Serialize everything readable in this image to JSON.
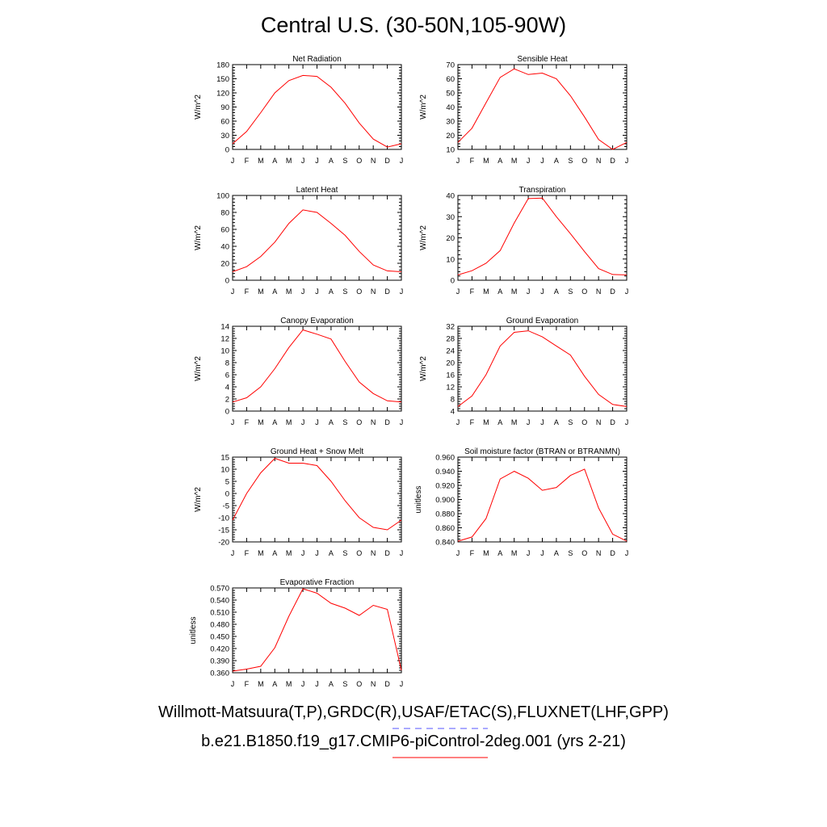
{
  "title": "Central U.S. (30-50N,105-90W)",
  "legend": {
    "obs_label": "Willmott-Matsuura(T,P),GRDC(R),USAF/ETAC(S),FLUXNET(LHF,GPP)",
    "obs_color": "#5555ff",
    "model_label": "b.e21.B1850.f19_g17.CMIP6-piControl-2deg.001 (yrs 2-21)",
    "model_color": "#ff0000"
  },
  "chart_data": [
    {
      "type": "line",
      "title": "Net Radiation",
      "ylabel": "W/m^2",
      "x": [
        "J",
        "F",
        "M",
        "A",
        "M",
        "J",
        "J",
        "A",
        "S",
        "O",
        "N",
        "D",
        "J"
      ],
      "ylim": [
        0,
        180
      ],
      "yticks": [
        0,
        30,
        60,
        90,
        120,
        150,
        180
      ],
      "ytick_labels": [
        "0",
        "30",
        "60",
        "90",
        "120",
        "150",
        "180"
      ],
      "series": [
        {
          "values": [
            12,
            38,
            78,
            120,
            146,
            157,
            155,
            132,
            98,
            56,
            22,
            5,
            12
          ],
          "color": "#ff0000"
        }
      ]
    },
    {
      "type": "line",
      "title": "Sensible Heat",
      "ylabel": "W/m^2",
      "x": [
        "J",
        "F",
        "M",
        "A",
        "M",
        "J",
        "J",
        "A",
        "S",
        "O",
        "N",
        "D",
        "J"
      ],
      "ylim": [
        10,
        70
      ],
      "yticks": [
        10,
        20,
        30,
        40,
        50,
        60,
        70
      ],
      "ytick_labels": [
        "10",
        "20",
        "30",
        "40",
        "50",
        "60",
        "70"
      ],
      "series": [
        {
          "values": [
            15,
            25,
            43,
            61,
            67,
            63,
            64,
            60,
            48,
            33,
            17,
            10,
            15
          ],
          "color": "#ff0000"
        }
      ]
    },
    {
      "type": "line",
      "title": "Latent Heat",
      "ylabel": "W/m^2",
      "x": [
        "J",
        "F",
        "M",
        "A",
        "M",
        "J",
        "J",
        "A",
        "S",
        "O",
        "N",
        "D",
        "J"
      ],
      "ylim": [
        0,
        100
      ],
      "yticks": [
        0,
        20,
        40,
        60,
        80,
        100
      ],
      "ytick_labels": [
        "0",
        "20",
        "40",
        "60",
        "80",
        "100"
      ],
      "series": [
        {
          "values": [
            10,
            16,
            28,
            45,
            67,
            83,
            80,
            67,
            53,
            34,
            18,
            11,
            10
          ],
          "color": "#ff0000"
        }
      ]
    },
    {
      "type": "line",
      "title": "Transpiration",
      "ylabel": "W/m^2",
      "x": [
        "J",
        "F",
        "M",
        "A",
        "M",
        "J",
        "J",
        "A",
        "S",
        "O",
        "N",
        "D",
        "J"
      ],
      "ylim": [
        0,
        40
      ],
      "yticks": [
        0,
        10,
        20,
        30,
        40
      ],
      "ytick_labels": [
        "0",
        "10",
        "20",
        "30",
        "40"
      ],
      "series": [
        {
          "values": [
            2.5,
            4.5,
            8,
            14,
            27,
            38.5,
            38.8,
            30,
            22,
            13.5,
            5.5,
            2.7,
            2.5
          ],
          "color": "#ff0000"
        }
      ]
    },
    {
      "type": "line",
      "title": "Canopy Evaporation",
      "ylabel": "W/m^2",
      "x": [
        "J",
        "F",
        "M",
        "A",
        "M",
        "J",
        "J",
        "A",
        "S",
        "O",
        "N",
        "D",
        "J"
      ],
      "ylim": [
        0,
        14
      ],
      "yticks": [
        0,
        2,
        4,
        6,
        8,
        10,
        12,
        14
      ],
      "ytick_labels": [
        "0",
        "2",
        "4",
        "6",
        "8",
        "10",
        "12",
        "14"
      ],
      "series": [
        {
          "values": [
            1.5,
            2.2,
            4,
            7,
            10.5,
            13.4,
            12.7,
            11.9,
            8.2,
            4.8,
            2.9,
            1.7,
            1.5
          ],
          "color": "#ff0000"
        }
      ]
    },
    {
      "type": "line",
      "title": "Ground Evaporation",
      "ylabel": "W/m^2",
      "x": [
        "J",
        "F",
        "M",
        "A",
        "M",
        "J",
        "J",
        "A",
        "S",
        "O",
        "N",
        "D",
        "J"
      ],
      "ylim": [
        4,
        32
      ],
      "yticks": [
        4,
        8,
        12,
        16,
        20,
        24,
        28,
        32
      ],
      "ytick_labels": [
        "4",
        "8",
        "12",
        "16",
        "20",
        "24",
        "28",
        "32"
      ],
      "series": [
        {
          "values": [
            5.5,
            9,
            16,
            25.5,
            30,
            30.5,
            28.5,
            25.5,
            22.5,
            15.5,
            9.5,
            6.2,
            5.5
          ],
          "color": "#ff0000"
        }
      ]
    },
    {
      "type": "line",
      "title": "Ground Heat + Snow Melt",
      "ylabel": "W/m^2",
      "x": [
        "J",
        "F",
        "M",
        "A",
        "M",
        "J",
        "J",
        "A",
        "S",
        "O",
        "N",
        "D",
        "J"
      ],
      "ylim": [
        -20,
        15
      ],
      "yticks": [
        -20,
        -15,
        -10,
        -5,
        0,
        5,
        10,
        15
      ],
      "ytick_labels": [
        "-20",
        "-15",
        "-10",
        "-5",
        "0",
        "5",
        "10",
        "15"
      ],
      "series": [
        {
          "values": [
            -11,
            0,
            8.5,
            14.5,
            12.5,
            12.5,
            11.5,
            5,
            -3,
            -10,
            -14,
            -15,
            -11
          ],
          "color": "#ff0000"
        }
      ]
    },
    {
      "type": "line",
      "title": "Soil moisture factor (BTRAN or BTRANMN)",
      "ylabel": "unitless",
      "x": [
        "J",
        "F",
        "M",
        "A",
        "M",
        "J",
        "J",
        "A",
        "S",
        "O",
        "N",
        "D",
        "J"
      ],
      "ylim": [
        0.84,
        0.96
      ],
      "yticks": [
        0.84,
        0.86,
        0.88,
        0.9,
        0.92,
        0.94,
        0.96
      ],
      "ytick_labels": [
        "0.840",
        "0.860",
        "0.880",
        "0.900",
        "0.920",
        "0.940",
        "0.960"
      ],
      "series": [
        {
          "values": [
            0.841,
            0.847,
            0.873,
            0.929,
            0.94,
            0.93,
            0.913,
            0.917,
            0.934,
            0.943,
            0.888,
            0.851,
            0.841
          ],
          "color": "#ff0000"
        }
      ]
    },
    {
      "type": "line",
      "title": "Evaporative Fraction",
      "ylabel": "unitless",
      "x": [
        "J",
        "F",
        "M",
        "A",
        "M",
        "J",
        "J",
        "A",
        "S",
        "O",
        "N",
        "D",
        "J"
      ],
      "ylim": [
        0.36,
        0.57
      ],
      "yticks": [
        0.36,
        0.39,
        0.42,
        0.45,
        0.48,
        0.51,
        0.54,
        0.57
      ],
      "ytick_labels": [
        "0.360",
        "0.390",
        "0.420",
        "0.450",
        "0.480",
        "0.510",
        "0.540",
        "0.570"
      ],
      "series": [
        {
          "values": [
            0.364,
            0.369,
            0.376,
            0.422,
            0.5,
            0.568,
            0.557,
            0.532,
            0.52,
            0.502,
            0.527,
            0.517,
            0.366
          ],
          "color": "#ff0000"
        }
      ]
    }
  ]
}
